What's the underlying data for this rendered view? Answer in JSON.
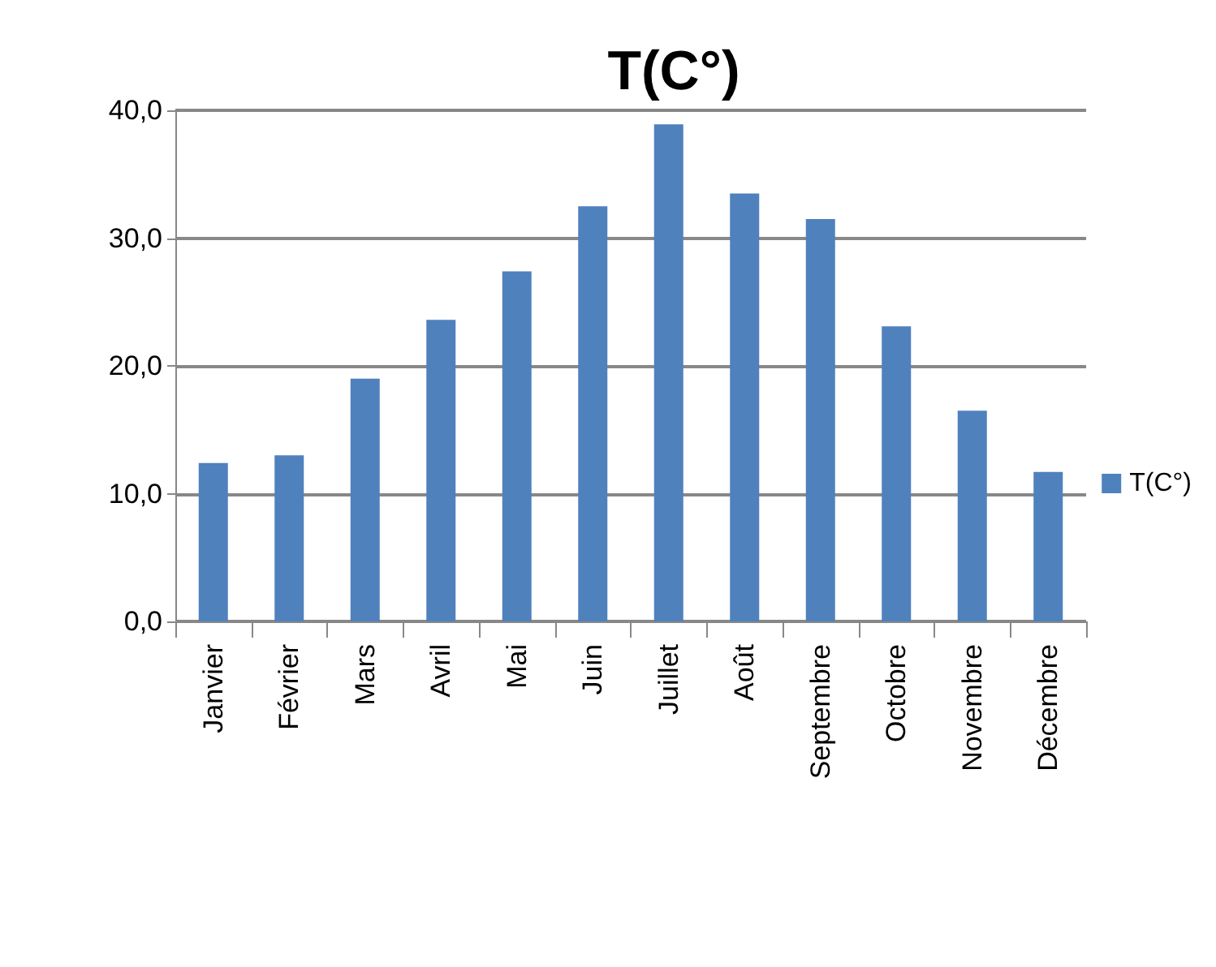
{
  "chart_data": {
    "type": "bar",
    "title": "T(C°)",
    "categories": [
      "Janvier",
      "Février",
      "Mars",
      "Avril",
      "Mai",
      "Juin",
      "Juillet",
      "Août",
      "Septembre",
      "Octobre",
      "Novembre",
      "Décembre"
    ],
    "series": [
      {
        "name": "T(C°)",
        "color": "#4f81bd",
        "values": [
          12.4,
          13.0,
          19.0,
          23.6,
          27.4,
          32.5,
          38.9,
          33.5,
          31.5,
          23.1,
          16.5,
          11.7
        ]
      }
    ],
    "ylim": [
      0,
      40
    ],
    "yticks": [
      {
        "value": 0,
        "label": "0,0"
      },
      {
        "value": 10,
        "label": "10,0"
      },
      {
        "value": 20,
        "label": "20,0"
      },
      {
        "value": 30,
        "label": "30,0"
      },
      {
        "value": 40,
        "label": "40,0"
      }
    ],
    "grid": "y",
    "legend": "right"
  }
}
